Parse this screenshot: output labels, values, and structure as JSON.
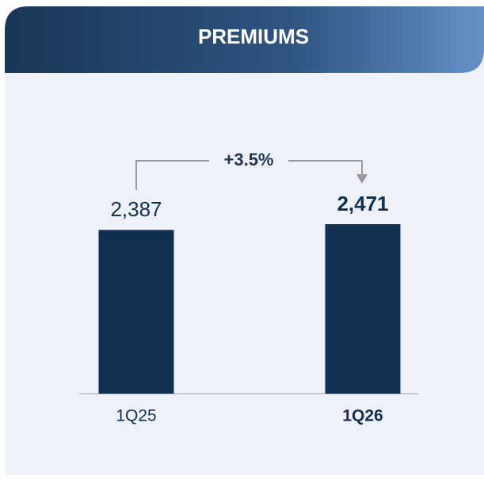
{
  "chart_data": {
    "type": "bar",
    "title": "PREMIUMS",
    "categories": [
      "1Q25",
      "1Q26"
    ],
    "values": [
      2387,
      2471
    ],
    "value_labels": [
      "2,387",
      "2,471"
    ],
    "color": "#12304f",
    "annotation": "+3.5%"
  }
}
